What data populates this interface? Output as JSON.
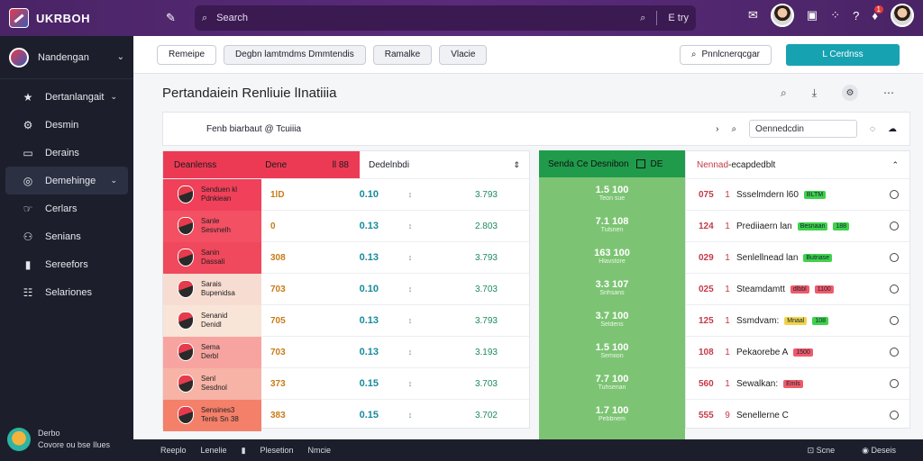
{
  "app": {
    "brand": "UKRBOH",
    "search_placeholder": "Search",
    "search_right": "E try"
  },
  "topbar": {
    "notif_count": "1"
  },
  "sidebar": {
    "team": "Nandengan",
    "items": [
      {
        "label": "Dertanlangait",
        "icon": "star-icon"
      },
      {
        "label": "Desmin",
        "icon": "gear-icon"
      },
      {
        "label": "Derains",
        "icon": "inbox-icon"
      },
      {
        "label": "Demehinge",
        "icon": "target-icon"
      },
      {
        "label": "Cerlars",
        "icon": "hand-icon"
      },
      {
        "label": "Senians",
        "icon": "people-icon"
      },
      {
        "label": "Sereefors",
        "icon": "bar-chart-icon"
      },
      {
        "label": "Selariones",
        "icon": "sliders-icon"
      }
    ],
    "user": {
      "name": "Derbo",
      "sub": "Covore ou bse Ilues"
    }
  },
  "filters": [
    "Remeipe",
    "Degbn lamtmdms Dmmtendis",
    "Ramalke",
    "Vlacie"
  ],
  "filter_search": "Pnnlcnerqcgar",
  "cta": "L Cerdnss",
  "page": {
    "title": "Pertandaiein Renliuie lInatiiia"
  },
  "match": {
    "label": "Fenb biarbaut @ Tcuiiia",
    "input": "Oennedcdin"
  },
  "panel1": {
    "header_left": "Deanlenss",
    "header_mid": "Dene",
    "header_right": "ll 88",
    "header_white": "Dedelnbdi",
    "rows": [
      {
        "team": [
          "Senduen kl",
          "Pdnkiean"
        ],
        "score": "1lD",
        "odd": "0.10",
        "val": "3.793"
      },
      {
        "team": [
          "Sanle",
          "Sesvnelh"
        ],
        "score": "0",
        "odd": "0.13",
        "val": "2.803"
      },
      {
        "team": [
          "Sanin",
          "Dassali"
        ],
        "score": "308",
        "odd": "0.13",
        "val": "3.793"
      },
      {
        "team": [
          "Sarais",
          "Bupenidsa"
        ],
        "score": "703",
        "odd": "0.10",
        "val": "3.703"
      },
      {
        "team": [
          "Senanid",
          "Denidl"
        ],
        "score": "705",
        "odd": "0.13",
        "val": "3.793"
      },
      {
        "team": [
          "Sema",
          "Derbl"
        ],
        "score": "703",
        "odd": "0.13",
        "val": "3.193"
      },
      {
        "team": [
          "Senl",
          "Sesdnol"
        ],
        "score": "373",
        "odd": "0.15",
        "val": "3.703"
      },
      {
        "team": [
          "Sensines3",
          "Tenls Sn 38"
        ],
        "score": "383",
        "odd": "0.15",
        "val": "3.702"
      }
    ]
  },
  "panel2": {
    "header": "Senda Ce Desnibon",
    "header_right": "DE",
    "rows": [
      {
        "big": "1.5 100",
        "small": "Teon sue"
      },
      {
        "big": "7.1 108",
        "small": "Tulsnen"
      },
      {
        "big": "163 100",
        "small": "Hlavstore"
      },
      {
        "big": "3.3 107",
        "small": "Snhsans"
      },
      {
        "big": "3.7 100",
        "small": "Seldens"
      },
      {
        "big": "1.5 100",
        "small": "Semiion"
      },
      {
        "big": "7.7 100",
        "small": "Tuhsenan"
      },
      {
        "big": "1.7 100",
        "small": "Pebbnem"
      }
    ]
  },
  "panel3": {
    "header_a": "Nennad",
    "header_b": "-ecapdedblt",
    "rows": [
      {
        "num": "075",
        "idx": "1",
        "name": "Ssselmdern l60",
        "tag": "BLTM",
        "tagc": "green"
      },
      {
        "num": "124",
        "idx": "1",
        "name": "Prediiaern lan",
        "tag": "Besnaan",
        "tagc": "green",
        "mid": "188"
      },
      {
        "num": "029",
        "idx": "1",
        "name": "Senlellnead lan",
        "tag": "Butnase",
        "tagc": "green"
      },
      {
        "num": "025",
        "idx": "1",
        "name": "Steamdamtt",
        "tag": "dlbbl",
        "tagc": "red",
        "mid": "1100"
      },
      {
        "num": "125",
        "idx": "1",
        "name": "Ssmdvam:",
        "tag": "Mnaal",
        "tagc": "yellow",
        "mid": "108"
      },
      {
        "num": "108",
        "idx": "1",
        "name": "Pekaorebe A",
        "tag": "",
        "tagc": "",
        "mid": "1500"
      },
      {
        "num": "560",
        "idx": "1",
        "name": "Sewalkan:",
        "tag": "Emls",
        "tagc": "red"
      },
      {
        "num": "555",
        "idx": "9",
        "name": "Senellerne C",
        "tag": "",
        "tagc": ""
      }
    ]
  },
  "bottom": {
    "left": [
      "Reeplo",
      "Lenelie",
      "Plesetion",
      "Nmcie"
    ],
    "right": [
      "Scne",
      "Deseis"
    ]
  }
}
